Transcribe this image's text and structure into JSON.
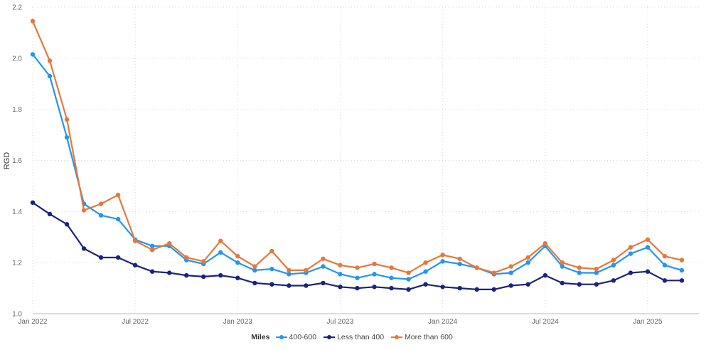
{
  "chart_data": {
    "type": "line",
    "ylabel": "RGD",
    "xlabel": "",
    "ylim": [
      1.0,
      2.2
    ],
    "yticks": [
      1.0,
      1.2,
      1.4,
      1.6,
      1.8,
      2.0,
      2.2
    ],
    "ytick_labels": [
      "1.0",
      "1.2",
      "1.4",
      "1.6",
      "1.8",
      "2.0",
      "2.2"
    ],
    "xlim": [
      "2022-01",
      "2025-04"
    ],
    "xticks": [
      {
        "x": "2022-01",
        "label": "Jan 2022"
      },
      {
        "x": "2022-07",
        "label": "Jul 2022"
      },
      {
        "x": "2023-01",
        "label": "Jan 2023"
      },
      {
        "x": "2023-07",
        "label": "Jul 2023"
      },
      {
        "x": "2024-01",
        "label": "Jan 2024"
      },
      {
        "x": "2024-07",
        "label": "Jul 2024"
      },
      {
        "x": "2025-01",
        "label": "Jan 2025"
      }
    ],
    "grid": true,
    "legend_title": "Miles",
    "legend_position": "bottom",
    "x": [
      "2022-01",
      "2022-02",
      "2022-03",
      "2022-04",
      "2022-05",
      "2022-06",
      "2022-07",
      "2022-08",
      "2022-09",
      "2022-10",
      "2022-11",
      "2022-12",
      "2023-01",
      "2023-02",
      "2023-03",
      "2023-04",
      "2023-05",
      "2023-06",
      "2023-07",
      "2023-08",
      "2023-09",
      "2023-10",
      "2023-11",
      "2023-12",
      "2024-01",
      "2024-02",
      "2024-03",
      "2024-04",
      "2024-05",
      "2024-06",
      "2024-07",
      "2024-08",
      "2024-09",
      "2024-10",
      "2024-11",
      "2024-12",
      "2025-01",
      "2025-02",
      "2025-03"
    ],
    "series": [
      {
        "name": "400-600",
        "color": "#2196F3",
        "values": [
          2.015,
          1.93,
          1.69,
          1.43,
          1.385,
          1.37,
          1.29,
          1.265,
          1.265,
          1.21,
          1.195,
          1.24,
          1.2,
          1.17,
          1.175,
          1.155,
          1.16,
          1.185,
          1.155,
          1.14,
          1.155,
          1.14,
          1.135,
          1.165,
          1.205,
          1.195,
          1.18,
          1.155,
          1.16,
          1.2,
          1.265,
          1.185,
          1.16,
          1.16,
          1.19,
          1.235,
          1.26,
          1.19,
          1.17
        ]
      },
      {
        "name": "Less than 400",
        "color": "#1A237E",
        "values": [
          1.435,
          1.39,
          1.35,
          1.255,
          1.22,
          1.22,
          1.19,
          1.165,
          1.16,
          1.15,
          1.145,
          1.15,
          1.14,
          1.12,
          1.115,
          1.11,
          1.11,
          1.12,
          1.105,
          1.1,
          1.105,
          1.1,
          1.095,
          1.115,
          1.105,
          1.1,
          1.095,
          1.095,
          1.11,
          1.115,
          1.15,
          1.12,
          1.115,
          1.115,
          1.13,
          1.16,
          1.165,
          1.13,
          1.13
        ]
      },
      {
        "name": "More than 600",
        "color": "#E8773A",
        "values": [
          2.145,
          1.99,
          1.76,
          1.405,
          1.43,
          1.465,
          1.285,
          1.25,
          1.275,
          1.22,
          1.205,
          1.285,
          1.225,
          1.185,
          1.245,
          1.17,
          1.17,
          1.215,
          1.19,
          1.18,
          1.195,
          1.18,
          1.16,
          1.2,
          1.23,
          1.215,
          1.18,
          1.16,
          1.185,
          1.22,
          1.275,
          1.2,
          1.18,
          1.175,
          1.21,
          1.26,
          1.29,
          1.225,
          1.21
        ]
      }
    ]
  }
}
